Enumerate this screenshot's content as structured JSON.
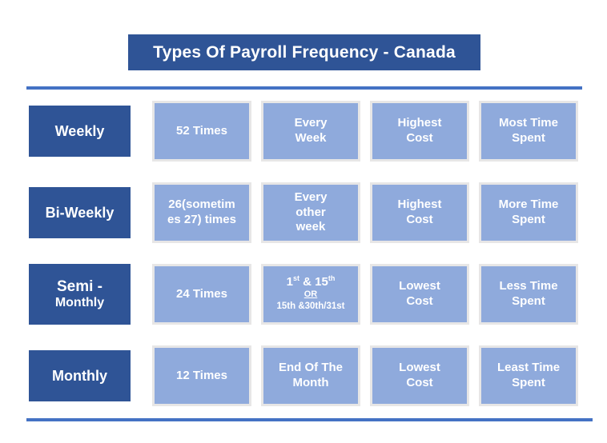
{
  "title": "Types Of Payroll Frequency - Canada",
  "colors": {
    "dark_blue": "#2F5496",
    "light_blue": "#8FAADC",
    "card_border": "#E7E6E6",
    "divider_blue": "#4472C4",
    "text_white": "#FFFFFF"
  },
  "table": {
    "rows": [
      {
        "label": "Weekly",
        "cells": [
          "52 Times",
          "Every\nWeek",
          "Highest\nCost",
          "Most Time\nSpent"
        ]
      },
      {
        "label": "Bi-Weekly",
        "cells": [
          "26(sometim\nes 27) times",
          "Every\nother\nweek",
          "Highest\nCost",
          "More Time\nSpent"
        ]
      },
      {
        "label_line1": "Semi -",
        "label_line2": "Monthly",
        "cells": [
          "24 Times",
          "",
          "Lowest\nCost",
          "Less Time\nSpent"
        ],
        "special_cell": {
          "part1": "1",
          "sup1": "st",
          "part2": " & 15",
          "sup2": "th",
          "or_label": "OR",
          "line3": "15th &30th/31st"
        }
      },
      {
        "label": "Monthly",
        "cells": [
          "12 Times",
          "End Of The\nMonth",
          "Lowest\nCost",
          "Least Time\nSpent"
        ]
      }
    ]
  }
}
